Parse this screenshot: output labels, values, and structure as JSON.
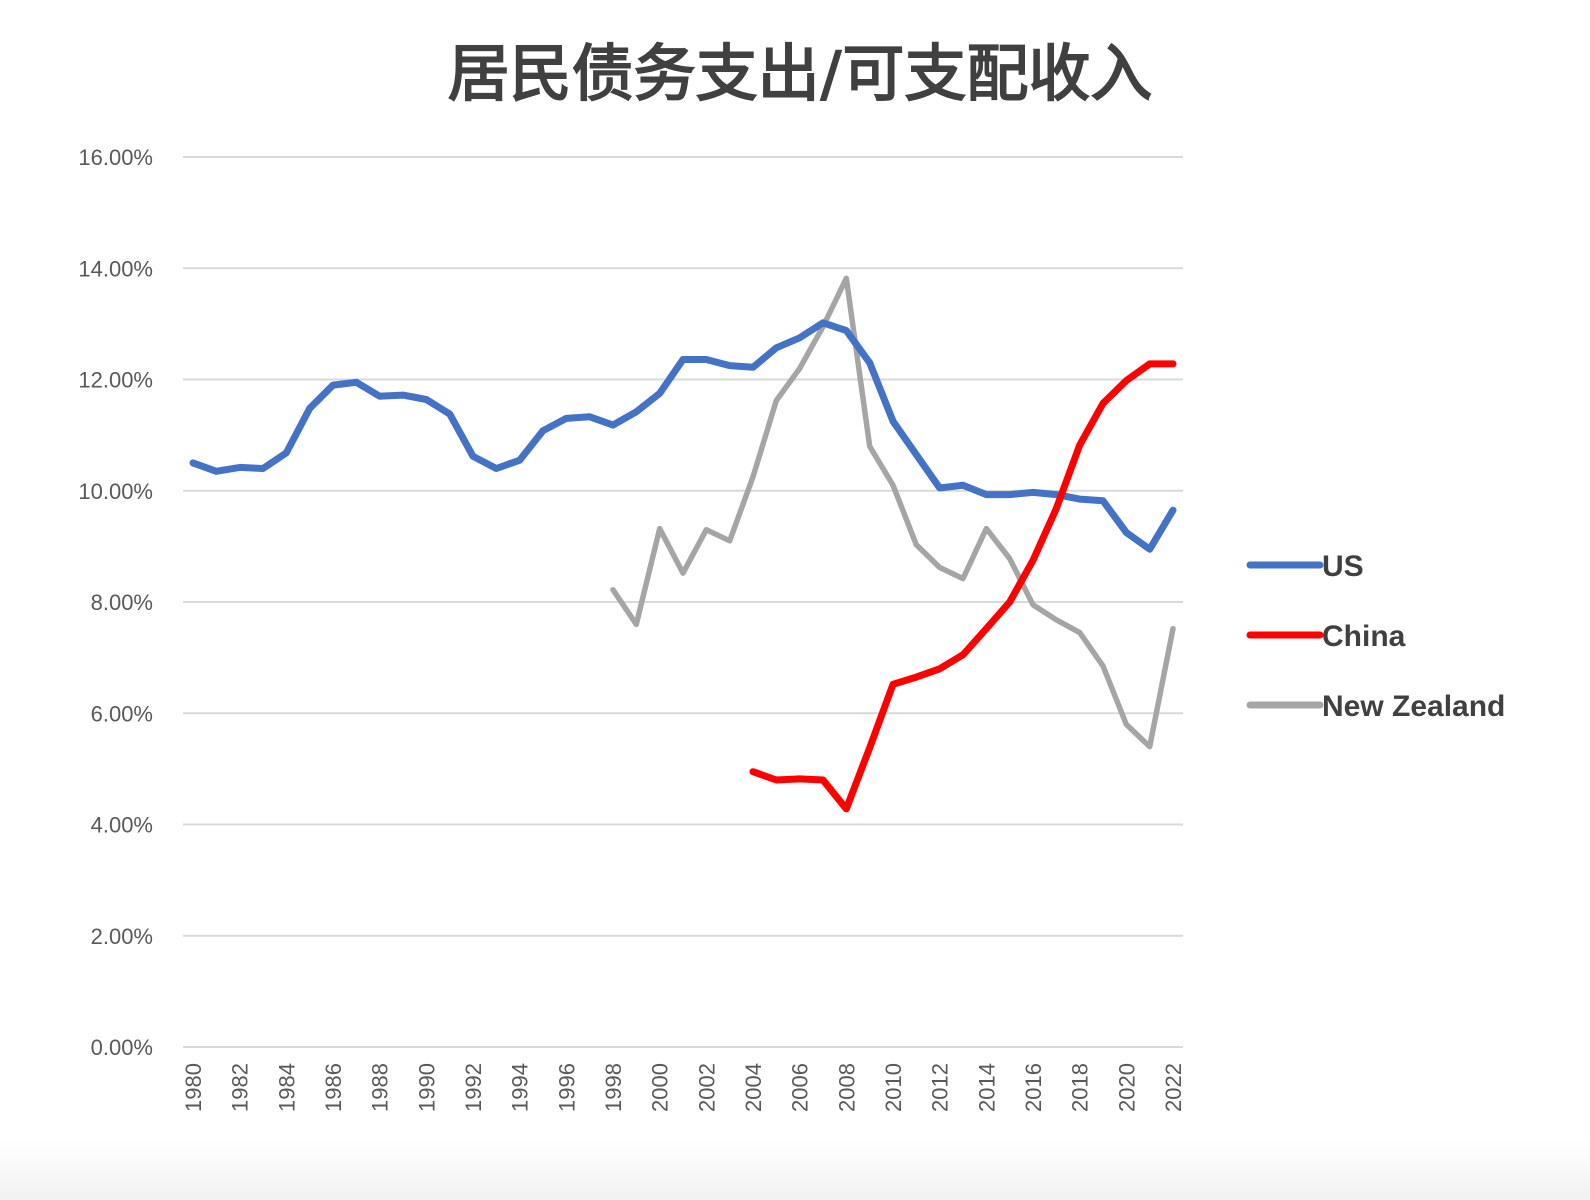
{
  "chart_data": {
    "type": "line",
    "title": "居民债务支出/可支配收入",
    "xlabel": "",
    "ylabel": "",
    "x": [
      1980,
      1981,
      1982,
      1983,
      1984,
      1985,
      1986,
      1987,
      1988,
      1989,
      1990,
      1991,
      1992,
      1993,
      1994,
      1995,
      1996,
      1997,
      1998,
      1999,
      2000,
      2001,
      2002,
      2003,
      2004,
      2005,
      2006,
      2007,
      2008,
      2009,
      2010,
      2011,
      2012,
      2013,
      2014,
      2015,
      2016,
      2017,
      2018,
      2019,
      2020,
      2021,
      2022
    ],
    "x_tick_labels": [
      "1980",
      "1982",
      "1984",
      "1986",
      "1988",
      "1990",
      "1992",
      "1994",
      "1996",
      "1998",
      "2000",
      "2002",
      "2004",
      "2006",
      "2008",
      "2010",
      "2012",
      "2014",
      "2016",
      "2018",
      "2020",
      "2022"
    ],
    "ylim": [
      0,
      0.16
    ],
    "y_tick_labels": [
      "0.00%",
      "2.00%",
      "4.00%",
      "6.00%",
      "8.00%",
      "10.00%",
      "12.00%",
      "14.00%",
      "16.00%"
    ],
    "grid": true,
    "legend_position": "right",
    "series": [
      {
        "name": "US",
        "color": "#4472c4",
        "values": [
          0.105,
          0.1035,
          0.1042,
          0.104,
          0.1068,
          0.1148,
          0.119,
          0.1195,
          0.117,
          0.1172,
          0.1164,
          0.1138,
          0.1062,
          0.104,
          0.1055,
          0.1108,
          0.113,
          0.1133,
          0.1118,
          0.1142,
          0.1175,
          0.1236,
          0.1236,
          0.1225,
          0.1222,
          0.1257,
          0.1275,
          0.1302,
          0.1288,
          0.123,
          0.1125,
          0.1065,
          0.1005,
          0.101,
          0.0993,
          0.0993,
          0.0997,
          0.0993,
          0.0985,
          0.0982,
          0.0925,
          0.0895,
          0.0965
        ]
      },
      {
        "name": "China",
        "color": "#ff0000",
        "values": [
          null,
          null,
          null,
          null,
          null,
          null,
          null,
          null,
          null,
          null,
          null,
          null,
          null,
          null,
          null,
          null,
          null,
          null,
          null,
          null,
          null,
          null,
          null,
          null,
          0.0495,
          0.048,
          0.0482,
          0.048,
          0.0428,
          0.0538,
          0.0652,
          0.0665,
          0.068,
          0.0705,
          0.0752,
          0.08,
          0.0875,
          0.0968,
          0.1082,
          0.1157,
          0.1198,
          0.1228,
          0.1228
        ]
      },
      {
        "name": "New Zealand",
        "color": "#a5a5a5",
        "values": [
          null,
          null,
          null,
          null,
          null,
          null,
          null,
          null,
          null,
          null,
          null,
          null,
          null,
          null,
          null,
          null,
          null,
          null,
          0.0822,
          0.076,
          0.0932,
          0.0852,
          0.093,
          0.091,
          0.1025,
          0.1162,
          0.122,
          0.1295,
          0.1382,
          0.108,
          0.101,
          0.0903,
          0.0862,
          0.0842,
          0.0932,
          0.0878,
          0.0795,
          0.0768,
          0.0745,
          0.0685,
          0.058,
          0.054,
          0.0752
        ]
      }
    ]
  }
}
